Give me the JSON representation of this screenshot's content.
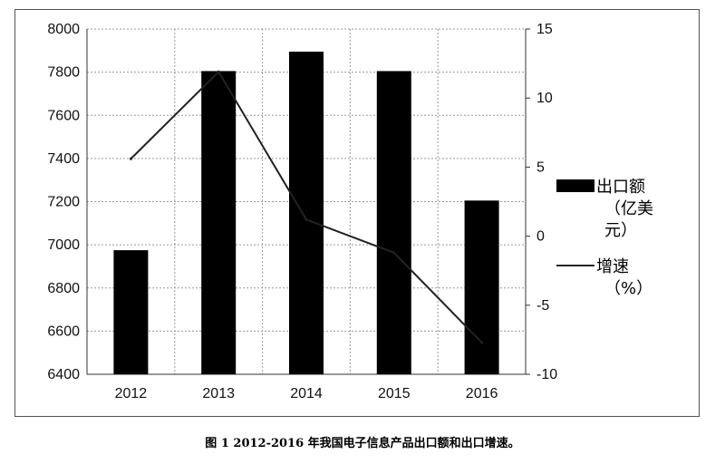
{
  "chart_data": {
    "type": "bar",
    "categories": [
      "2012",
      "2013",
      "2014",
      "2015",
      "2016"
    ],
    "series": [
      {
        "name": "出口额（亿美元）",
        "type": "bar",
        "axis": "left",
        "color": "#000000",
        "values": [
          6975,
          7805,
          7895,
          7805,
          7205
        ]
      },
      {
        "name": "增速（%）",
        "type": "line",
        "axis": "right",
        "color": "#222222",
        "values": [
          5.6,
          11.9,
          1.2,
          -1.2,
          -7.7
        ]
      }
    ],
    "y_left": {
      "min": 6400,
      "max": 8000,
      "ticks": [
        "6400",
        "6600",
        "6800",
        "7000",
        "7200",
        "7400",
        "7600",
        "7800",
        "8000"
      ]
    },
    "y_right": {
      "min": -10,
      "max": 15,
      "ticks": [
        "-10",
        "-5",
        "0",
        "5",
        "10",
        "15"
      ]
    },
    "grid": true,
    "legend": {
      "placement": "right",
      "bar_lines": [
        "出口额",
        "（亿美",
        "元）"
      ],
      "line_lines": [
        "增速",
        "（%）"
      ]
    },
    "caption": "图 1   2012-2016 年我国电子信息产品出口额和出口增速。"
  }
}
